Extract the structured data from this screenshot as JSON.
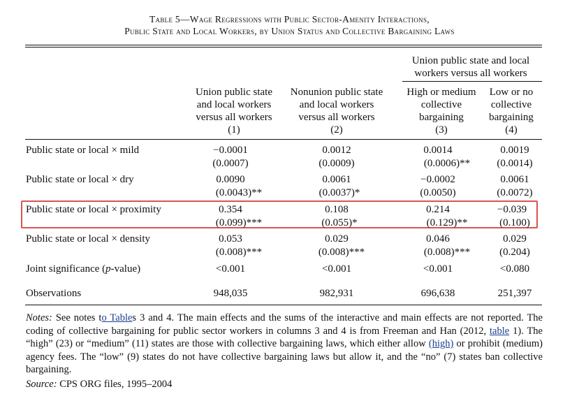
{
  "title_line1": "Table 5—Wage Regressions with Public Sector-Amenity Interactions,",
  "title_line2": "Public State and Local Workers, by Union Status and Collective Bargaining Laws",
  "spanner": {
    "line1": "Union public state and local",
    "line2": "workers versus all workers"
  },
  "columns": [
    {
      "l1": "Union public state",
      "l2": "and local workers",
      "l3": "versus all workers",
      "num": "(1)"
    },
    {
      "l1": "Nonunion public state",
      "l2": "and local workers",
      "l3": "versus all workers",
      "num": "(2)"
    },
    {
      "l1": "High or medium",
      "l2": "collective",
      "l3": "bargaining",
      "num": "(3)"
    },
    {
      "l1": "Low or no",
      "l2": "collective",
      "l3": "bargaining",
      "num": "(4)"
    }
  ],
  "rows": [
    {
      "label": "Public state or local × mild",
      "coef": [
        "−0.0001",
        "0.0012",
        "0.0014",
        "0.0019"
      ],
      "se": [
        "(0.0007)",
        "(0.0009)",
        "(0.0006)**",
        "(0.0014)"
      ]
    },
    {
      "label": "Public state or local × dry",
      "coef": [
        "0.0090",
        "0.0061",
        "−0.0002",
        "0.0061"
      ],
      "se": [
        "(0.0043)**",
        "(0.0037)*",
        "(0.0050)",
        "(0.0072)"
      ]
    },
    {
      "label": "Public state or local × proximity",
      "coef": [
        "0.354",
        "0.108",
        "0.214",
        "−0.039"
      ],
      "se": [
        "(0.099)***",
        "(0.055)*",
        "(0.129)**",
        "(0.100)"
      ]
    },
    {
      "label": "Public state or local × density",
      "coef": [
        "0.053",
        "0.029",
        "0.046",
        "0.029"
      ],
      "se": [
        "(0.008)***",
        "(0.008)***",
        "(0.008)***",
        "(0.204)"
      ]
    }
  ],
  "joint": {
    "label_pre": "Joint significance (",
    "label_p": "p",
    "label_post": "-value)",
    "values": [
      "<0.001",
      "<0.001",
      "<0.001",
      "<0.080"
    ]
  },
  "observations": {
    "label": "Observations",
    "values": [
      "948,035",
      "982,931",
      "696,638",
      "251,397"
    ]
  },
  "notes": {
    "label": "Notes:",
    "s1": " See notes t",
    "link1": "o Table",
    "s2": "s 3 and 4. The main effects and the sums of the interactive and main effects are not reported. The coding of collective bargaining for public sector workers in columns 3 and 4 is from Freeman and Han (2012, ",
    "link2": "table",
    "s3": " 1). The “high” (23) or “medium” (11) states are those with collective bargaining laws, which either allow ",
    "link3": "(high)",
    "s4": " or prohibit (medium) agency fees. The “low” (9) states do not have collective bargaining laws but allow it, and the “no” (7) states ban collective bargaining."
  },
  "source": {
    "label": "Source:",
    "text": " CPS ORG files, 1995–2004"
  }
}
